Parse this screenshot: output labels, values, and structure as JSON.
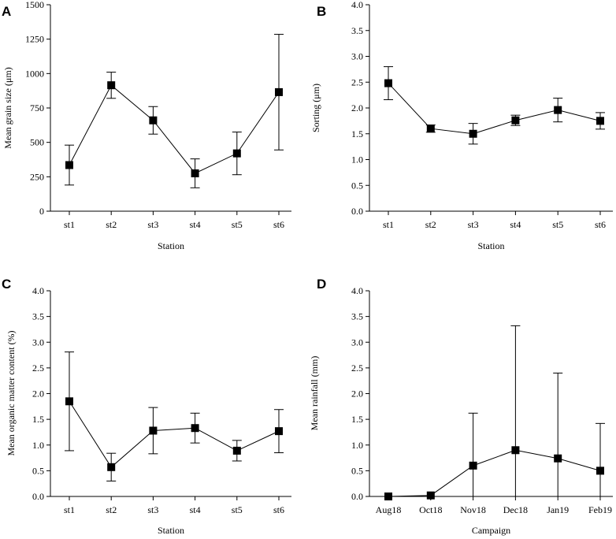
{
  "chart_data": [
    {
      "id": "A",
      "panel_label": "A",
      "type": "line",
      "title": "",
      "xlabel": "Station",
      "ylabel": "Mean grain size (μm)",
      "categories": [
        "st1",
        "st2",
        "st3",
        "st4",
        "st5",
        "st6"
      ],
      "series": [
        {
          "name": "Mean grain size",
          "values": [
            335,
            915,
            660,
            275,
            420,
            865
          ],
          "errors": [
            145,
            95,
            100,
            105,
            155,
            420
          ]
        }
      ],
      "ylim": [
        0,
        1500
      ],
      "yticks": [
        0,
        250,
        500,
        750,
        1000,
        1250,
        1500
      ],
      "ytick_labels": [
        "0",
        "250",
        "500",
        "750",
        "1000",
        "1250",
        "1500"
      ],
      "grid": false
    },
    {
      "id": "B",
      "panel_label": "B",
      "type": "line",
      "title": "",
      "xlabel": "Station",
      "ylabel": "Sorting (μm)",
      "categories": [
        "st1",
        "st2",
        "st3",
        "st4",
        "st5",
        "st6"
      ],
      "series": [
        {
          "name": "Sorting",
          "values": [
            2.48,
            1.6,
            1.5,
            1.76,
            1.96,
            1.75
          ],
          "errors": [
            0.32,
            0.07,
            0.2,
            0.1,
            0.23,
            0.16
          ]
        }
      ],
      "ylim": [
        0,
        4
      ],
      "yticks": [
        0,
        0.5,
        1,
        1.5,
        2,
        2.5,
        3,
        3.5,
        4
      ],
      "ytick_labels": [
        "0.0",
        "0.5",
        "1.0",
        "1.5",
        "2.0",
        "2.5",
        "3.0",
        "3.5",
        "4.0"
      ],
      "grid": false
    },
    {
      "id": "C",
      "panel_label": "C",
      "type": "line",
      "title": "",
      "xlabel": "Station",
      "ylabel": "Mean organic matter content (%)",
      "categories": [
        "st1",
        "st2",
        "st3",
        "st4",
        "st5",
        "st6"
      ],
      "series": [
        {
          "name": "Mean organic matter content",
          "values": [
            1.85,
            0.57,
            1.28,
            1.33,
            0.89,
            1.27
          ],
          "errors": [
            0.96,
            0.27,
            0.45,
            0.29,
            0.2,
            0.42
          ]
        }
      ],
      "ylim": [
        0,
        4
      ],
      "yticks": [
        0,
        0.5,
        1,
        1.5,
        2,
        2.5,
        3,
        3.5,
        4
      ],
      "ytick_labels": [
        "0.0",
        "0.5",
        "1.0",
        "1.5",
        "2.0",
        "2.5",
        "3.0",
        "3.5",
        "4.0"
      ],
      "grid": false
    },
    {
      "id": "D",
      "panel_label": "D",
      "type": "line",
      "title": "",
      "xlabel": "Campaign",
      "ylabel": "Mean rainfall (mm)",
      "categories": [
        "Aug18",
        "Oct18",
        "Nov18",
        "Dec18",
        "Jan19",
        "Feb19"
      ],
      "series": [
        {
          "name": "Mean rainfall",
          "values": [
            0.0,
            0.02,
            0.6,
            0.9,
            0.74,
            0.5
          ],
          "errors": [
            0.0,
            0.0,
            1.02,
            2.42,
            1.66,
            0.92
          ]
        }
      ],
      "ylim": [
        0,
        4
      ],
      "yticks": [
        0,
        0.5,
        1,
        1.5,
        2,
        2.5,
        3,
        3.5,
        4
      ],
      "ytick_labels": [
        "0.0",
        "0.5",
        "1.0",
        "1.5",
        "2.0",
        "2.5",
        "3.0",
        "3.5",
        "4.0"
      ],
      "grid": false
    }
  ]
}
